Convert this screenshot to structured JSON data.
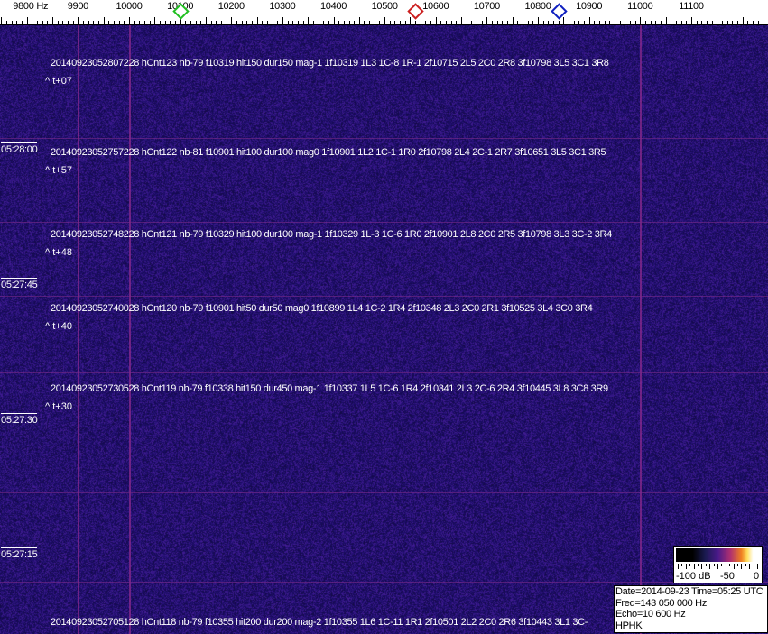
{
  "axis": {
    "labels": [
      "9800 Hz",
      "9900",
      "10000",
      "10100",
      "10200",
      "10300",
      "10400",
      "10500",
      "10600",
      "10700",
      "10800",
      "10900",
      "11000",
      "11100"
    ],
    "markers": [
      {
        "name": "green-marker",
        "freq_hz": 10100,
        "color": "#22c022"
      },
      {
        "name": "red-marker",
        "freq_hz": 10560,
        "color": "#cc2020"
      },
      {
        "name": "blue-marker",
        "freq_hz": 10840,
        "color": "#1020c0"
      }
    ]
  },
  "colors": {
    "background": "#24156e",
    "line": "#8a2a8c"
  },
  "detections": [
    {
      "text": "20140923052807228 hCnt123 nb-79 f10319 hit150 dur150 mag-1 1f10319 1L3 1C-8 1R-1 2f10715 2L5 2C0 2R8 3f10798 3L5 3C1 3R8",
      "offset": "^ t+07"
    },
    {
      "text": "20140923052757228 hCnt122 nb-81 f10901 hit100 dur100 mag0 1f10901 1L2 1C-1 1R0 2f10798 2L4 2C-1 2R7 3f10651 3L5 3C1 3R5",
      "offset": "^ t+57"
    },
    {
      "text": "20140923052748228 hCnt121 nb-79 f10329 hit100 dur100 mag-1 1f10329 1L-3 1C-6 1R0 2f10901 2L8 2C0 2R5 3f10798 3L3 3C-2 3R4",
      "offset": "^ t+48"
    },
    {
      "text": "20140923052740028 hCnt120 nb-79 f10901 hit50 dur50 mag0 1f10899 1L4 1C-2 1R4 2f10348 2L3 2C0 2R1 3f10525 3L4 3C0 3R4",
      "offset": "^ t+40"
    },
    {
      "text": "20140923052730528 hCnt119 nb-79 f10338 hit150 dur450 mag-1 1f10337 1L5 1C-6 1R4 2f10341 2L3 2C-6 2R4 3f10445 3L8 3C8 3R9",
      "offset": "^ t+30"
    },
    {
      "text": "20140923052705128 hCnt118 nb-79 f10355 hit200 dur200 mag-2 1f10355 1L6 1C-11 1R1 2f10501 2L2 2C0 2R6 3f10443 3L1 3C-",
      "offset": ""
    }
  ],
  "time_marks": [
    "05:28:00",
    "05:27:45",
    "05:27:30",
    "05:27:15"
  ],
  "scale": {
    "min_label": "-100 dB",
    "mid_label": "-50",
    "max_label": "0"
  },
  "info": {
    "line1": "Date=2014-09-23 Time=05:25 UTC",
    "line2": "Freq=143 050 000 Hz",
    "line3": "Echo=10 600 Hz",
    "line4": "HPHK"
  }
}
